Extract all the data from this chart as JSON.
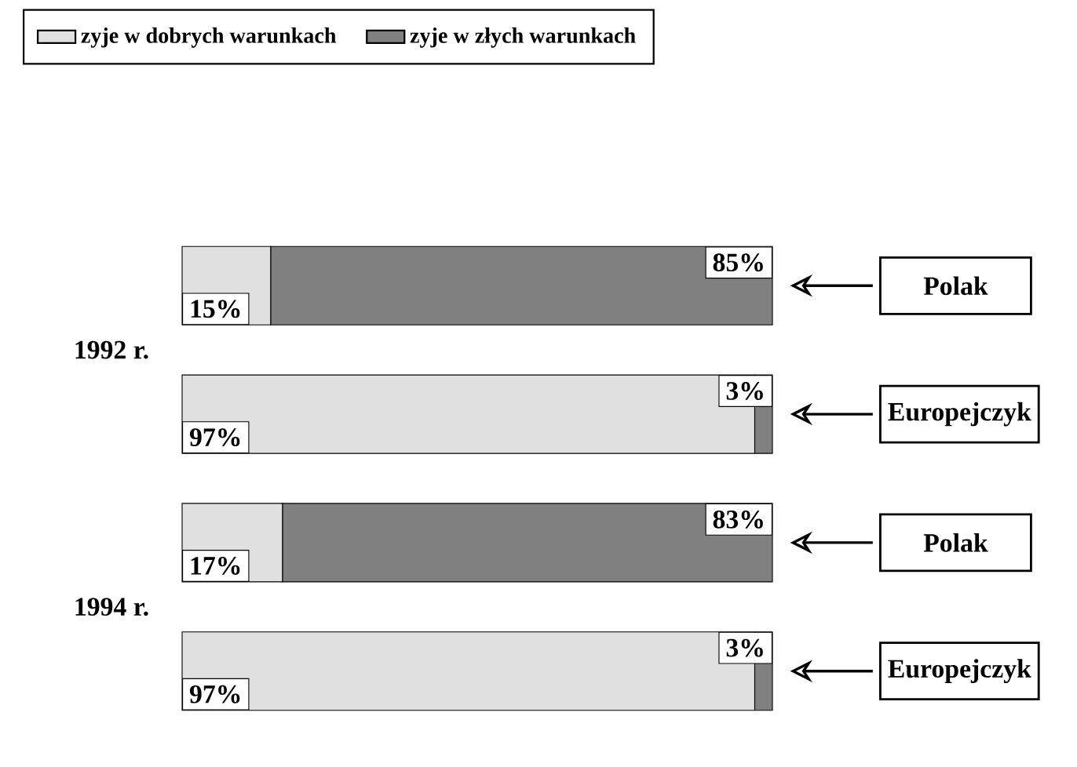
{
  "chart_data": {
    "type": "bar",
    "orientation": "horizontal",
    "stacked": true,
    "categories": [
      "Polak",
      "Europejczyk",
      "Polak",
      "Europejczyk"
    ],
    "series": [
      {
        "name": "zyje w dobrych warunkach",
        "color": "#e0e0e0",
        "values": [
          15,
          97,
          17,
          97
        ],
        "value_labels": [
          "15%",
          "97%",
          "17%",
          "97%"
        ]
      },
      {
        "name": "zyje w złych warunkach",
        "color": "#808080",
        "values": [
          85,
          3,
          83,
          3
        ],
        "value_labels": [
          "85%",
          "3%",
          "83%",
          "3%"
        ]
      }
    ],
    "legend": "top left",
    "annotations": [
      "1992 r.",
      "1994 r."
    ]
  }
}
